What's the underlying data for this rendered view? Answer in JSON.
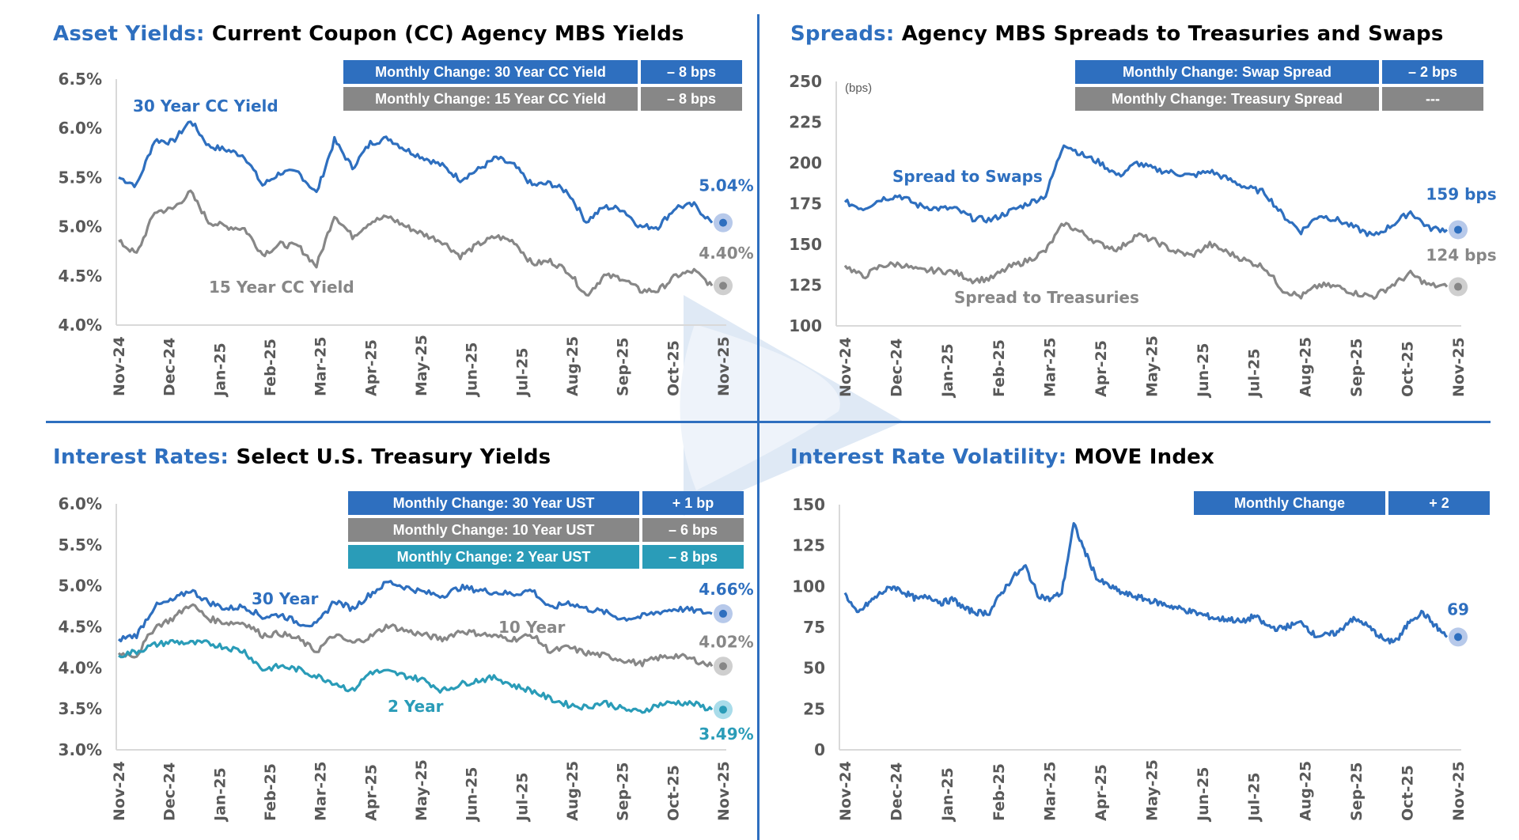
{
  "colors": {
    "blue": "#2e6fbf",
    "gray": "#878787",
    "teal": "#2a9cb8",
    "axis": "#d9d9d9",
    "tick_text": "#595959"
  },
  "x_labels": [
    "Nov-24",
    "Dec-24",
    "Jan-25",
    "Feb-25",
    "Mar-25",
    "Apr-25",
    "May-25",
    "Jun-25",
    "Jul-25",
    "Aug-25",
    "Sep-25",
    "Oct-25",
    "Nov-25"
  ],
  "panels": {
    "asset_yields": {
      "title_accent": "Asset Yields:",
      "title_rest": "Current Coupon (CC) Agency MBS Yields",
      "table": [
        {
          "label": "Monthly Change: 30 Year CC Yield",
          "value": "– 8 bps",
          "color": "blue"
        },
        {
          "label": "Monthly Change: 15 Year CC Yield",
          "value": "– 8 bps",
          "color": "gray"
        }
      ]
    },
    "spreads": {
      "title_accent": "Spreads:",
      "title_rest": "Agency MBS Spreads to Treasuries and Swaps",
      "unit_label": "(bps)",
      "table": [
        {
          "label": "Monthly Change: Swap Spread",
          "value": "– 2 bps",
          "color": "blue"
        },
        {
          "label": "Monthly Change: Treasury Spread",
          "value": "---",
          "color": "gray"
        }
      ]
    },
    "interest_rates": {
      "title_accent": "Interest Rates:",
      "title_rest": "Select U.S. Treasury Yields",
      "table": [
        {
          "label": "Monthly Change: 30 Year UST",
          "value": "+ 1 bp",
          "color": "blue"
        },
        {
          "label": "Monthly Change: 10 Year UST",
          "value": "– 6 bps",
          "color": "gray"
        },
        {
          "label": "Monthly Change: 2 Year UST",
          "value": "– 8 bps",
          "color": "teal"
        }
      ]
    },
    "volatility": {
      "title_accent": "Interest Rate Volatility:",
      "title_rest": "MOVE Index",
      "table": [
        {
          "label": "Monthly Change",
          "value": "+ 2",
          "color": "blue"
        }
      ]
    }
  },
  "chart_data": [
    {
      "id": "asset_yields",
      "type": "line",
      "title": "Current Coupon (CC) Agency MBS Yields",
      "xlabel": "",
      "ylabel": "",
      "ylim": [
        4.0,
        6.5
      ],
      "yticks": [
        "4.0%",
        "4.5%",
        "5.0%",
        "5.5%",
        "6.0%",
        "6.5%"
      ],
      "ytick_values": [
        4.0,
        4.5,
        5.0,
        5.5,
        6.0,
        6.5
      ],
      "x": [
        "Nov-24",
        "Dec-24",
        "Jan-25",
        "Feb-25",
        "Mar-25",
        "Apr-25",
        "May-25",
        "Jun-25",
        "Jul-25",
        "Aug-25",
        "Sep-25",
        "Oct-25",
        "Nov-25"
      ],
      "series": [
        {
          "name": "30 Year CC Yield",
          "color": "blue",
          "end_label": "5.04%",
          "values": [
            5.5,
            5.42,
            5.88,
            5.86,
            6.08,
            5.82,
            5.78,
            5.72,
            5.42,
            5.55,
            5.55,
            5.34,
            5.88,
            5.6,
            5.85,
            5.9,
            5.78,
            5.7,
            5.62,
            5.48,
            5.58,
            5.7,
            5.62,
            5.42,
            5.44,
            5.35,
            5.05,
            5.2,
            5.18,
            5.0,
            5.0,
            5.2,
            5.22,
            5.04
          ]
        },
        {
          "name": "15 Year CC Yield",
          "color": "gray",
          "end_label": "4.40%",
          "values": [
            4.85,
            4.72,
            5.15,
            5.18,
            5.35,
            5.05,
            5.0,
            4.98,
            4.72,
            4.82,
            4.8,
            4.6,
            5.12,
            4.9,
            5.05,
            5.1,
            5.0,
            4.92,
            4.85,
            4.7,
            4.82,
            4.9,
            4.85,
            4.62,
            4.65,
            4.55,
            4.3,
            4.5,
            4.48,
            4.35,
            4.35,
            4.5,
            4.55,
            4.4
          ]
        }
      ]
    },
    {
      "id": "spreads",
      "type": "line",
      "title": "Agency MBS Spreads to Treasuries and Swaps",
      "ylabel": "(bps)",
      "ylim": [
        100,
        250
      ],
      "yticks": [
        "100",
        "125",
        "150",
        "175",
        "200",
        "225",
        "250"
      ],
      "ytick_values": [
        100,
        125,
        150,
        175,
        200,
        225,
        250
      ],
      "x": [
        "Nov-24",
        "Dec-24",
        "Jan-25",
        "Feb-25",
        "Mar-25",
        "Apr-25",
        "May-25",
        "Jun-25",
        "Jul-25",
        "Aug-25",
        "Sep-25",
        "Oct-25",
        "Nov-25"
      ],
      "series": [
        {
          "name": "Spread to Swaps",
          "color": "blue",
          "end_label": "159 bps",
          "values": [
            176,
            172,
            178,
            180,
            174,
            172,
            172,
            166,
            165,
            170,
            175,
            180,
            212,
            205,
            200,
            192,
            200,
            196,
            194,
            192,
            195,
            190,
            185,
            182,
            168,
            158,
            168,
            165,
            160,
            155,
            162,
            170,
            160,
            159
          ]
        },
        {
          "name": "Spread to Treasuries",
          "color": "gray",
          "end_label": "124 bps",
          "values": [
            137,
            130,
            137,
            138,
            134,
            134,
            133,
            128,
            129,
            136,
            140,
            146,
            163,
            157,
            150,
            147,
            156,
            152,
            146,
            143,
            150,
            145,
            140,
            136,
            122,
            118,
            125,
            124,
            120,
            118,
            125,
            132,
            125,
            124
          ]
        }
      ]
    },
    {
      "id": "interest_rates",
      "type": "line",
      "title": "Select U.S. Treasury Yields",
      "ylim": [
        3.0,
        6.0
      ],
      "yticks": [
        "3.0%",
        "3.5%",
        "4.0%",
        "4.5%",
        "5.0%",
        "5.5%",
        "6.0%"
      ],
      "ytick_values": [
        3.0,
        3.5,
        4.0,
        4.5,
        5.0,
        5.5,
        6.0
      ],
      "x": [
        "Nov-24",
        "Dec-24",
        "Jan-25",
        "Feb-25",
        "Mar-25",
        "Apr-25",
        "May-25",
        "Jun-25",
        "Jul-25",
        "Aug-25",
        "Sep-25",
        "Oct-25",
        "Nov-25"
      ],
      "series": [
        {
          "name": "30 Year",
          "color": "blue",
          "end_label": "4.66%",
          "values": [
            4.35,
            4.4,
            4.75,
            4.82,
            4.95,
            4.8,
            4.72,
            4.75,
            4.62,
            4.65,
            4.55,
            4.52,
            4.82,
            4.72,
            4.9,
            5.05,
            4.98,
            4.92,
            4.88,
            4.98,
            4.95,
            4.92,
            4.9,
            4.95,
            4.72,
            4.8,
            4.72,
            4.68,
            4.6,
            4.62,
            4.68,
            4.72,
            4.7,
            4.66
          ]
        },
        {
          "name": "10 Year",
          "color": "gray",
          "end_label": "4.02%",
          "values": [
            4.18,
            4.15,
            4.5,
            4.6,
            4.78,
            4.6,
            4.55,
            4.55,
            4.4,
            4.42,
            4.35,
            4.2,
            4.4,
            4.3,
            4.38,
            4.52,
            4.45,
            4.4,
            4.35,
            4.45,
            4.42,
            4.38,
            4.35,
            4.4,
            4.2,
            4.25,
            4.18,
            4.15,
            4.1,
            4.05,
            4.12,
            4.15,
            4.1,
            4.02
          ]
        },
        {
          "name": "2 Year",
          "color": "teal",
          "end_label": "3.49%",
          "values": [
            4.15,
            4.2,
            4.28,
            4.32,
            4.3,
            4.3,
            4.25,
            4.2,
            3.98,
            4.02,
            3.98,
            3.9,
            3.82,
            3.72,
            3.95,
            3.95,
            3.9,
            3.85,
            3.72,
            3.8,
            3.85,
            3.88,
            3.78,
            3.72,
            3.62,
            3.55,
            3.52,
            3.58,
            3.5,
            3.46,
            3.55,
            3.58,
            3.56,
            3.49
          ]
        }
      ]
    },
    {
      "id": "volatility",
      "type": "line",
      "title": "MOVE Index",
      "ylim": [
        0,
        150
      ],
      "yticks": [
        "0",
        "25",
        "50",
        "75",
        "100",
        "125",
        "150"
      ],
      "ytick_values": [
        0,
        25,
        50,
        75,
        100,
        125,
        150
      ],
      "x": [
        "Nov-24",
        "Dec-24",
        "Jan-25",
        "Feb-25",
        "Mar-25",
        "Apr-25",
        "May-25",
        "Jun-25",
        "Jul-25",
        "Aug-25",
        "Sep-25",
        "Oct-25",
        "Nov-25"
      ],
      "series": [
        {
          "name": "MOVE Index",
          "color": "blue",
          "end_label": "69",
          "values": [
            96,
            83,
            90,
            96,
            100,
            96,
            92,
            94,
            90,
            92,
            86,
            84,
            84,
            96,
            106,
            112,
            95,
            92,
            96,
            138,
            120,
            104,
            100,
            96,
            94,
            92,
            90,
            88,
            86,
            84,
            82,
            80,
            80,
            78,
            82,
            76,
            74,
            76,
            78,
            70,
            70,
            72,
            80,
            78,
            72,
            66,
            68,
            80,
            84,
            76,
            69
          ]
        }
      ]
    }
  ]
}
